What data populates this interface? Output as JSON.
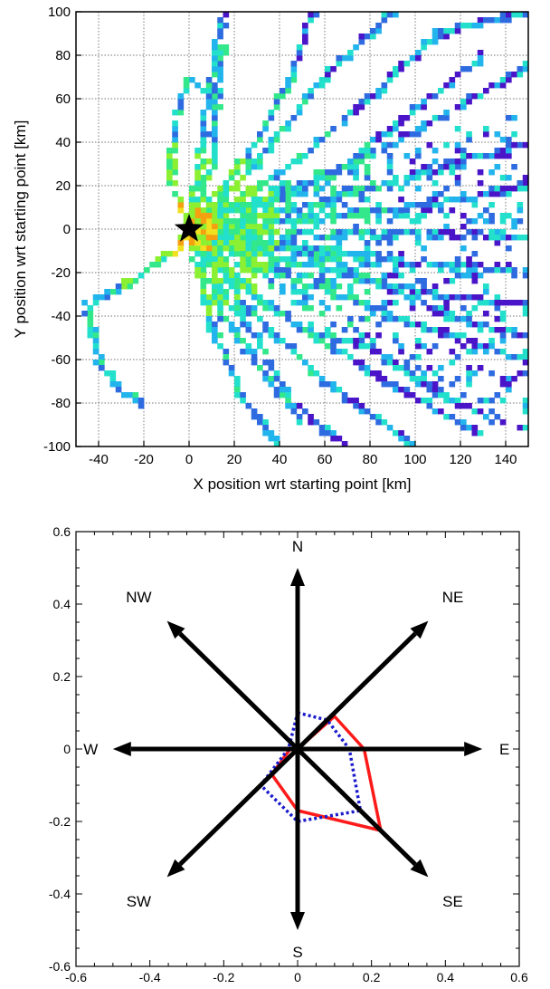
{
  "chart_data": [
    {
      "type": "heatmap",
      "xlabel": "X position wrt starting point [km]",
      "ylabel": "Y position wrt starting point [km]",
      "xlim": [
        -50,
        150
      ],
      "ylim": [
        -100,
        100
      ],
      "xticks": [
        -40,
        -20,
        0,
        20,
        40,
        60,
        80,
        100,
        120,
        140
      ],
      "yticks": [
        -100,
        -80,
        -60,
        -40,
        -20,
        0,
        20,
        40,
        60,
        80,
        100
      ],
      "grid": true,
      "start_marker": {
        "symbol": "star",
        "x": 0,
        "y": 0,
        "color": "#000000"
      },
      "colormap": [
        "#4a14c8",
        "#2f6be0",
        "#22b4ec",
        "#22e0cc",
        "#33e88a",
        "#8cf032",
        "#f0e020",
        "#f5a010"
      ],
      "tracks": [
        [
          [
            0,
            0
          ],
          [
            30,
            30
          ],
          [
            60,
            70
          ],
          [
            90,
            100
          ]
        ],
        [
          [
            0,
            0
          ],
          [
            40,
            25
          ],
          [
            80,
            60
          ],
          [
            110,
            90
          ],
          [
            150,
            100
          ]
        ],
        [
          [
            0,
            0
          ],
          [
            50,
            20
          ],
          [
            100,
            45
          ],
          [
            150,
            75
          ]
        ],
        [
          [
            0,
            0
          ],
          [
            50,
            10
          ],
          [
            100,
            25
          ],
          [
            150,
            40
          ]
        ],
        [
          [
            0,
            0
          ],
          [
            60,
            5
          ],
          [
            110,
            12
          ],
          [
            150,
            20
          ]
        ],
        [
          [
            0,
            0
          ],
          [
            50,
            -2
          ],
          [
            100,
            -2
          ],
          [
            150,
            -4
          ]
        ],
        [
          [
            0,
            0
          ],
          [
            50,
            -8
          ],
          [
            100,
            -15
          ],
          [
            150,
            -20
          ]
        ],
        [
          [
            0,
            0
          ],
          [
            45,
            -15
          ],
          [
            100,
            -28
          ],
          [
            150,
            -35
          ]
        ],
        [
          [
            0,
            0
          ],
          [
            40,
            -20
          ],
          [
            90,
            -40
          ],
          [
            150,
            -60
          ]
        ],
        [
          [
            0,
            0
          ],
          [
            35,
            -35
          ],
          [
            80,
            -65
          ],
          [
            130,
            -95
          ]
        ],
        [
          [
            0,
            0
          ],
          [
            25,
            -35
          ],
          [
            60,
            -70
          ],
          [
            100,
            -100
          ]
        ],
        [
          [
            0,
            0
          ],
          [
            15,
            -40
          ],
          [
            40,
            -75
          ],
          [
            70,
            -100
          ]
        ],
        [
          [
            0,
            0
          ],
          [
            10,
            -45
          ],
          [
            25,
            -80
          ],
          [
            40,
            -100
          ]
        ],
        [
          [
            0,
            0
          ],
          [
            10,
            30
          ],
          [
            12,
            60
          ],
          [
            15,
            85
          ]
        ],
        [
          [
            0,
            0
          ],
          [
            5,
            35
          ],
          [
            8,
            55
          ],
          [
            12,
            80
          ],
          [
            15,
            100
          ]
        ],
        [
          [
            0,
            0
          ],
          [
            -8,
            25
          ],
          [
            -5,
            55
          ],
          [
            0,
            70
          ],
          [
            10,
            60
          ]
        ],
        [
          [
            0,
            0
          ],
          [
            15,
            20
          ],
          [
            30,
            40
          ],
          [
            45,
            70
          ],
          [
            55,
            100
          ]
        ],
        [
          [
            0,
            0
          ],
          [
            -5,
            -10
          ],
          [
            -20,
            -20
          ],
          [
            -35,
            -30
          ],
          [
            -45,
            -35
          ],
          [
            -40,
            -60
          ],
          [
            -30,
            -75
          ],
          [
            -20,
            -80
          ]
        ],
        [
          [
            0,
            0
          ],
          [
            20,
            10
          ],
          [
            45,
            15
          ],
          [
            70,
            30
          ],
          [
            100,
            55
          ],
          [
            130,
            80
          ]
        ],
        [
          [
            0,
            0
          ],
          [
            25,
            -5
          ],
          [
            55,
            -12
          ],
          [
            85,
            -25
          ],
          [
            115,
            -40
          ],
          [
            150,
            -50
          ]
        ],
        [
          [
            0,
            0
          ],
          [
            20,
            -25
          ],
          [
            50,
            -45
          ],
          [
            80,
            -55
          ],
          [
            110,
            -75
          ],
          [
            140,
            -90
          ]
        ],
        [
          [
            0,
            0
          ],
          [
            5,
            -5
          ],
          [
            15,
            -30
          ],
          [
            30,
            -50
          ],
          [
            50,
            -90
          ]
        ]
      ]
    },
    {
      "type": "radar",
      "xlim": [
        -0.6,
        0.6
      ],
      "ylim": [
        -0.6,
        0.6
      ],
      "xticks": [
        -0.6,
        -0.4,
        -0.2,
        0,
        0.2,
        0.4,
        0.6
      ],
      "yticks": [
        -0.6,
        -0.4,
        -0.2,
        0,
        0.2,
        0.4,
        0.6
      ],
      "arrow_length": 0.5,
      "directions": [
        {
          "label": "N",
          "angle": 90,
          "lx": 0,
          "ly": 0.56
        },
        {
          "label": "NE",
          "angle": 45,
          "lx": 0.42,
          "ly": 0.42
        },
        {
          "label": "E",
          "angle": 0,
          "lx": 0.56,
          "ly": 0
        },
        {
          "label": "SE",
          "angle": -45,
          "lx": 0.42,
          "ly": -0.42
        },
        {
          "label": "S",
          "angle": -90,
          "lx": 0,
          "ly": -0.56
        },
        {
          "label": "SW",
          "angle": -135,
          "lx": -0.43,
          "ly": -0.42
        },
        {
          "label": "W",
          "angle": 180,
          "lx": -0.56,
          "ly": 0
        },
        {
          "label": "NW",
          "angle": 135,
          "lx": -0.43,
          "ly": 0.42
        }
      ],
      "series": [
        {
          "color": "#ff1a1a",
          "style": "solid",
          "points": [
            [
              0,
              0
            ],
            [
              0.1,
              0.09
            ],
            [
              0.18,
              0
            ],
            [
              0.225,
              -0.225
            ],
            [
              0,
              -0.17
            ],
            [
              -0.07,
              -0.07
            ],
            [
              -0.02,
              0
            ],
            [
              0,
              0
            ]
          ]
        },
        {
          "color": "#1a1acc",
          "style": "dotted",
          "points": [
            [
              0,
              0.1
            ],
            [
              0.08,
              0.08
            ],
            [
              0.14,
              0
            ],
            [
              0.17,
              -0.17
            ],
            [
              0,
              -0.2
            ],
            [
              -0.1,
              -0.1
            ],
            [
              -0.025,
              0
            ],
            [
              0,
              0.1
            ]
          ]
        }
      ]
    }
  ]
}
